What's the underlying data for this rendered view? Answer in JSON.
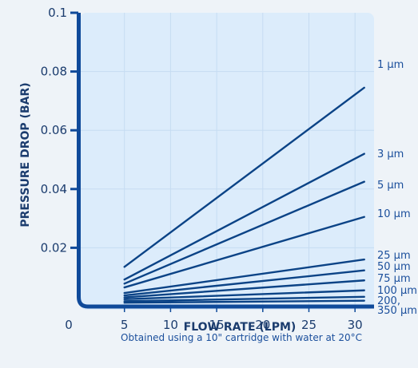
{
  "chart_data": {
    "type": "line",
    "xlabel": "FLOW RATE (LPM)",
    "ylabel": "PRESSURE DROP (BAR)",
    "note": "Obtained using a 10\" cartridge with water at 20°C",
    "xlim": [
      0,
      31.5
    ],
    "ylim": [
      0,
      0.1
    ],
    "x_origin_label": "0",
    "x_ticks": [
      5,
      10,
      15,
      20,
      25,
      30
    ],
    "y_ticks": [
      0.02,
      0.04,
      0.06,
      0.08,
      0.1
    ],
    "y_tick_labels": [
      "0.02",
      "0.04",
      "0.06",
      "0.08",
      "0.1"
    ],
    "grid": true,
    "colors": {
      "plot_bg": "#dcecfb",
      "grid": "#c6dcf2",
      "axis": "#0f4a9a",
      "line": "#0b4386",
      "text": "#1b3c6e",
      "label": "#1b4f9c"
    },
    "series": [
      {
        "name": "1 µm",
        "x": [
          5,
          31
        ],
        "y": [
          0.0135,
          0.0745
        ]
      },
      {
        "name": "3 µm",
        "x": [
          5,
          31
        ],
        "y": [
          0.0092,
          0.052
        ]
      },
      {
        "name": "5 µm",
        "x": [
          5,
          31
        ],
        "y": [
          0.0078,
          0.0425
        ]
      },
      {
        "name": "10 µm",
        "x": [
          5,
          31
        ],
        "y": [
          0.0065,
          0.0305
        ]
      },
      {
        "name": "25 µm",
        "x": [
          5,
          31
        ],
        "y": [
          0.0046,
          0.016
        ]
      },
      {
        "name": "50 µm",
        "x": [
          5,
          31
        ],
        "y": [
          0.0038,
          0.0123
        ]
      },
      {
        "name": "75 µm",
        "x": [
          5,
          31
        ],
        "y": [
          0.0031,
          0.0089
        ]
      },
      {
        "name": "100 µm",
        "x": [
          5,
          31
        ],
        "y": [
          0.0025,
          0.0055
        ]
      },
      {
        "name": "200,",
        "x": [
          5,
          31
        ],
        "y": [
          0.0018,
          0.0033
        ]
      },
      {
        "name": "350 µm",
        "x": [
          5,
          31
        ],
        "y": [
          0.0013,
          0.002
        ]
      }
    ]
  }
}
